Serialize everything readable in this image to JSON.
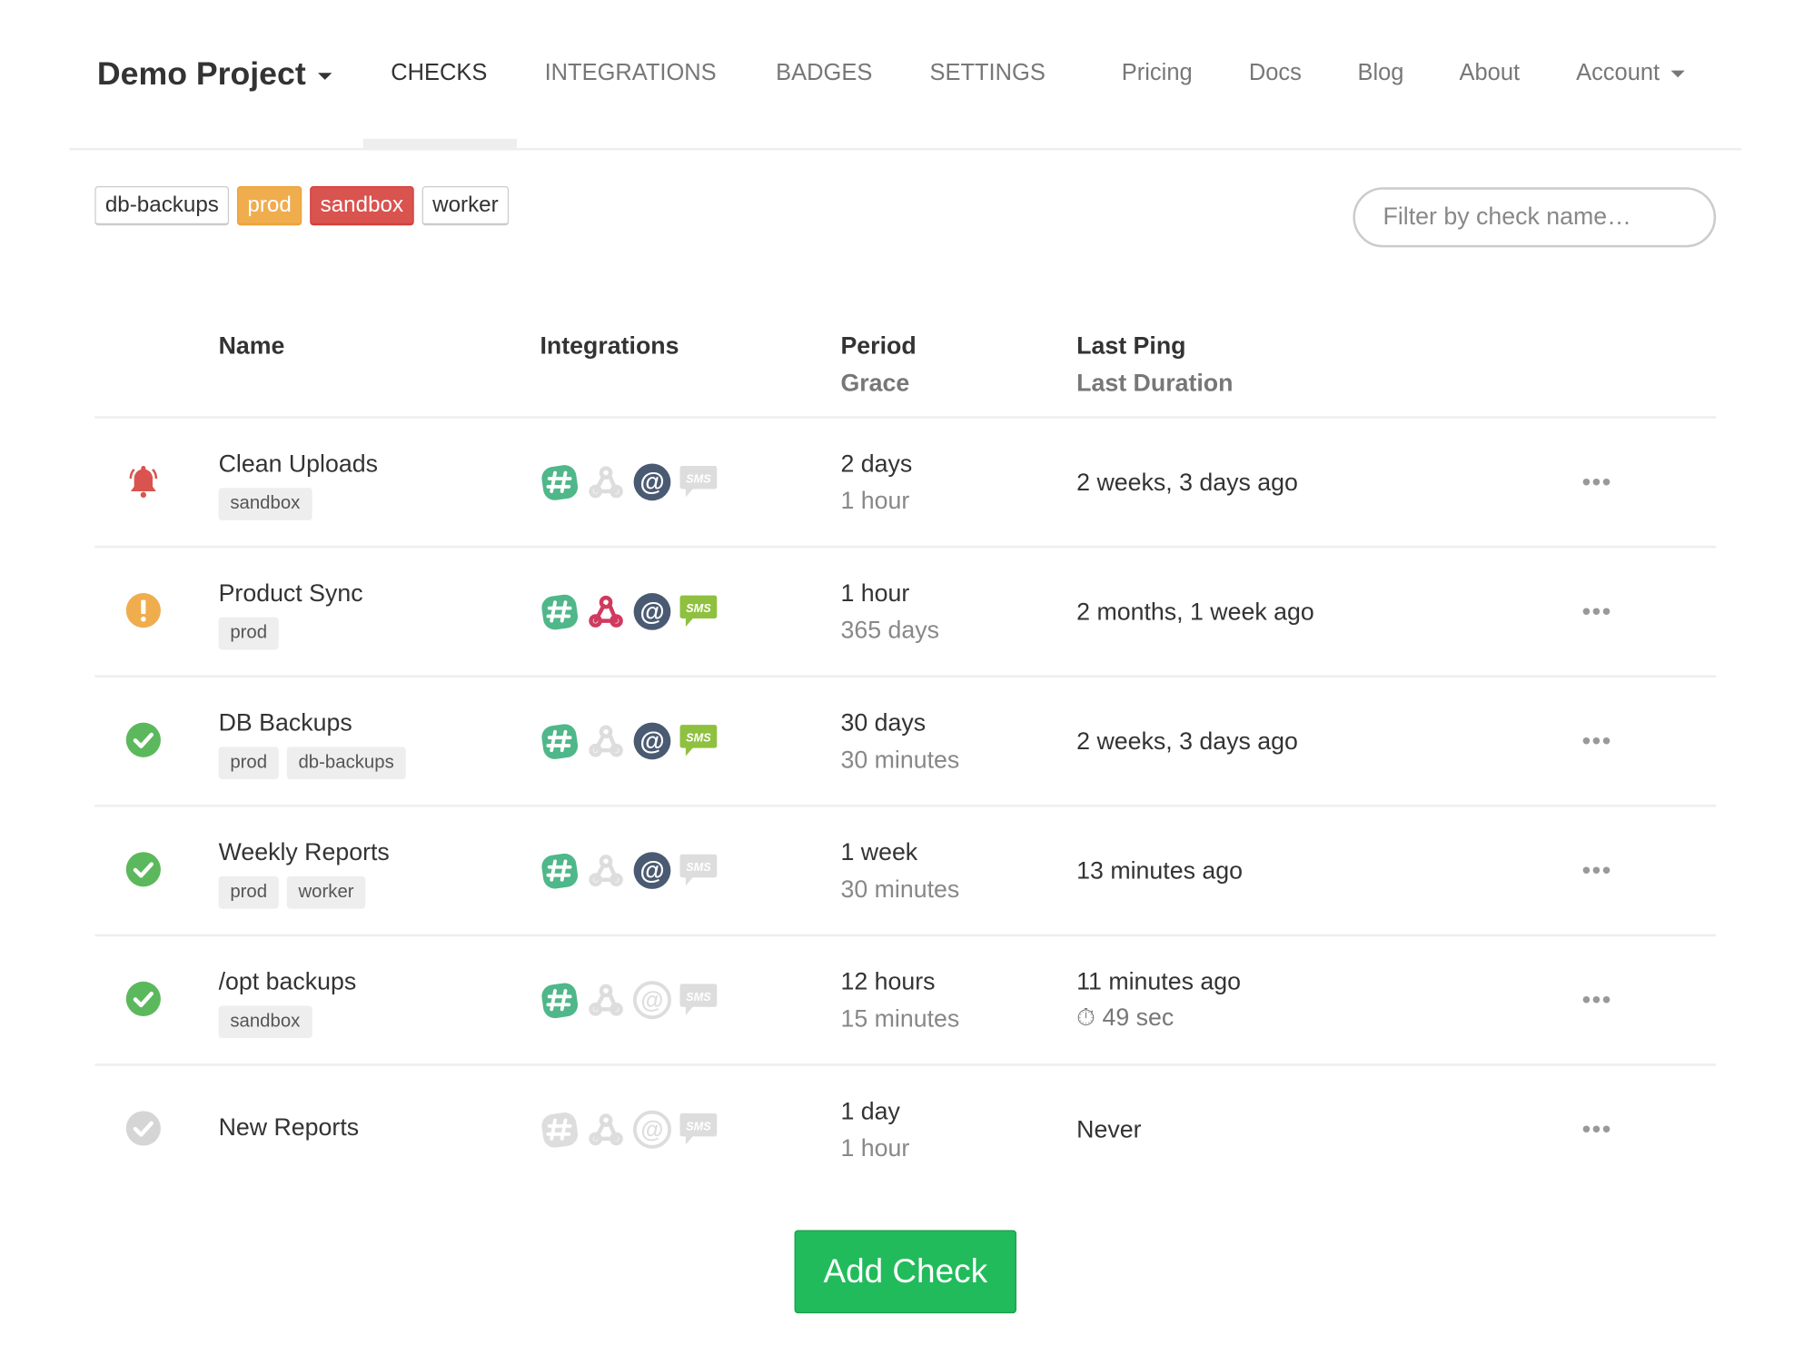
{
  "nav": {
    "project": "Demo Project",
    "tabs": [
      {
        "label": "CHECKS",
        "active": true
      },
      {
        "label": "INTEGRATIONS"
      },
      {
        "label": "BADGES"
      },
      {
        "label": "SETTINGS"
      }
    ],
    "links": [
      "Pricing",
      "Docs",
      "Blog",
      "About",
      "Account"
    ]
  },
  "tag_filters": [
    {
      "label": "db-backups",
      "color": "#ffffff"
    },
    {
      "label": "prod",
      "color": "#f0ad4e"
    },
    {
      "label": "sandbox",
      "color": "#d9534f"
    },
    {
      "label": "worker",
      "color": "#ffffff"
    }
  ],
  "filter": {
    "placeholder": "Filter by check name…"
  },
  "table": {
    "headers": {
      "name": "Name",
      "integrations": "Integrations",
      "period": "Period",
      "grace": "Grace",
      "last_ping": "Last Ping",
      "last_duration": "Last Duration"
    },
    "rows": [
      {
        "status": "down",
        "name": "Clean Uploads",
        "tags": [
          "sandbox"
        ],
        "integrations": {
          "slack": true,
          "webhook": false,
          "email": true,
          "sms": false
        },
        "period": "2 days",
        "grace": "1 hour",
        "last_ping": "2 weeks, 3 days ago",
        "duration": ""
      },
      {
        "status": "grace",
        "name": "Product Sync",
        "tags": [
          "prod"
        ],
        "integrations": {
          "slack": true,
          "webhook": true,
          "email": true,
          "sms": true
        },
        "period": "1 hour",
        "grace": "365 days",
        "last_ping": "2 months, 1 week ago",
        "duration": ""
      },
      {
        "status": "up",
        "name": "DB Backups",
        "tags": [
          "prod",
          "db-backups"
        ],
        "integrations": {
          "slack": true,
          "webhook": false,
          "email": true,
          "sms": true
        },
        "period": "30 days",
        "grace": "30 minutes",
        "last_ping": "2 weeks, 3 days ago",
        "duration": ""
      },
      {
        "status": "up",
        "name": "Weekly Reports",
        "tags": [
          "prod",
          "worker"
        ],
        "integrations": {
          "slack": true,
          "webhook": false,
          "email": true,
          "sms": false
        },
        "period": "1 week",
        "grace": "30 minutes",
        "last_ping": "13 minutes ago",
        "duration": ""
      },
      {
        "status": "up",
        "name": "/opt backups",
        "tags": [
          "sandbox"
        ],
        "integrations": {
          "slack": true,
          "webhook": false,
          "email": false,
          "sms": false
        },
        "period": "12 hours",
        "grace": "15 minutes",
        "last_ping": "11 minutes ago",
        "duration": "49 sec"
      },
      {
        "status": "new",
        "name": "New Reports",
        "tags": [],
        "integrations": {
          "slack": false,
          "webhook": false,
          "email": false,
          "sms": false
        },
        "period": "1 day",
        "grace": "1 hour",
        "last_ping": "Never",
        "duration": ""
      }
    ],
    "menu_label": "•••",
    "sms_label": "SMS"
  },
  "add_check_label": "Add Check",
  "colors": {
    "down": "#d9534f",
    "grace": "#f0ad4e",
    "up": "#5cb85c",
    "new": "#d5d5d5",
    "slack": "#4fb789",
    "webhook": "#d03a5e",
    "email": "#4a5a72",
    "sms": "#8fc03f",
    "off": "#dddddd",
    "add": "#22bb5b"
  }
}
